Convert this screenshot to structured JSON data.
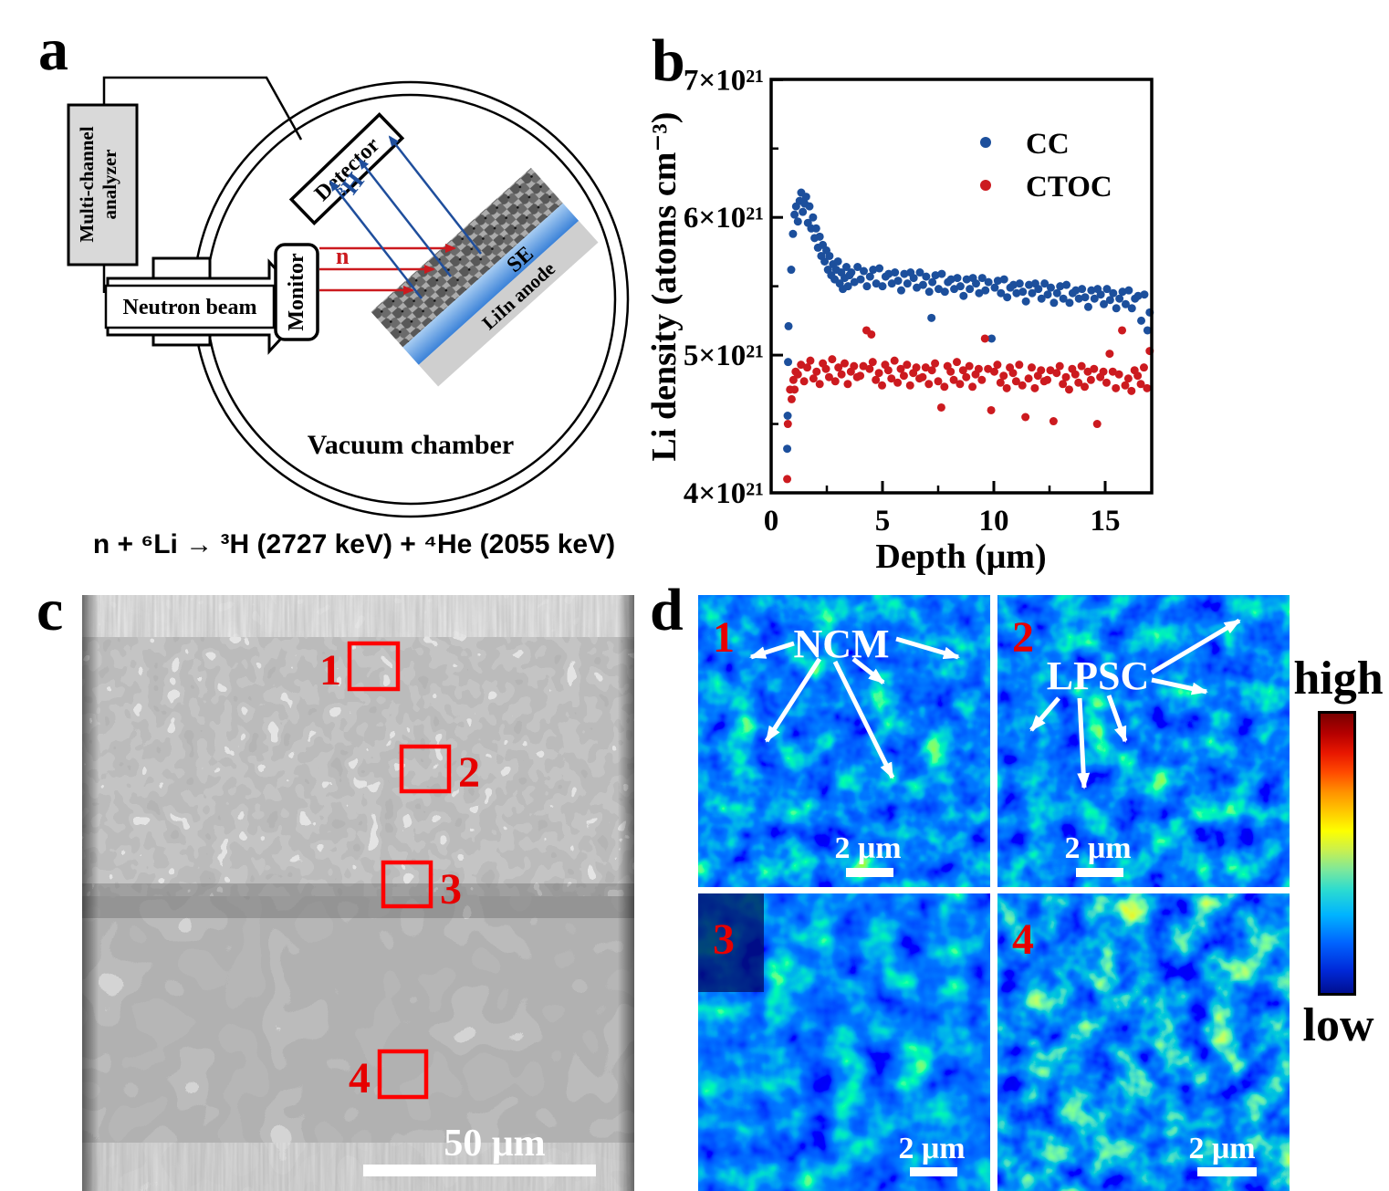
{
  "panels": {
    "a": "a",
    "b": "b",
    "c": "c",
    "d": "d"
  },
  "panel_a": {
    "analyzer_line1": "Multi-channel",
    "analyzer_line2": "analyzer",
    "neutron_beam": "Neutron beam",
    "monitor": "Monitor",
    "detector": "Detector",
    "chamber": "Vacuum chamber",
    "n_label": "n",
    "tritium_label": "³H",
    "se_label": "SE",
    "anode_label": "LiIn anode",
    "equation": "n + ⁶Li → ³H (2727 keV) + ⁴He (2055 keV)"
  },
  "panel_c": {
    "regions": [
      "1",
      "2",
      "3",
      "4"
    ],
    "scale_bar": "50 μm"
  },
  "panel_d": {
    "tiles": [
      "1",
      "2",
      "3",
      "4"
    ],
    "ncm_label": "NCM",
    "lpsc_label": "LPSC",
    "scale_bar": "2 μm",
    "colorbar_high": "high",
    "colorbar_low": "low"
  },
  "chart_data": {
    "type": "scatter",
    "xlabel": "Depth (μm)",
    "ylabel": "Li density (atoms cm⁻³)",
    "xlim": [
      0,
      17.1
    ],
    "ylim": [
      4,
      7
    ],
    "y_unit_scale": "1e21",
    "grid": false,
    "legend_position": "top-right",
    "xticks": {
      "major": [
        0,
        5,
        10,
        15
      ],
      "minor": [
        2.5,
        7.5,
        12.5
      ],
      "labels": [
        "0",
        "5",
        "10",
        "15"
      ]
    },
    "yticks": {
      "major": [
        4,
        5,
        6,
        7
      ],
      "minor": [
        4.5,
        5.5,
        6.5
      ],
      "labels": [
        "4×10²¹",
        "5×10²¹",
        "6×10²¹",
        "7×10²¹"
      ]
    },
    "series": [
      {
        "name": "CC",
        "color": "#1c4f9c",
        "points": [
          [
            0.72,
            4.32
          ],
          [
            0.74,
            4.56
          ],
          [
            0.76,
            4.95
          ],
          [
            0.78,
            5.21
          ],
          [
            0.9,
            5.62
          ],
          [
            0.98,
            5.88
          ],
          [
            1.05,
            6.02
          ],
          [
            1.12,
            6.08
          ],
          [
            1.2,
            5.97
          ],
          [
            1.28,
            6.12
          ],
          [
            1.35,
            6.18
          ],
          [
            1.42,
            6.04
          ],
          [
            1.5,
            6.1
          ],
          [
            1.57,
            6.15
          ],
          [
            1.65,
            5.96
          ],
          [
            1.72,
            6.08
          ],
          [
            1.8,
            5.92
          ],
          [
            1.88,
            6.0
          ],
          [
            1.95,
            5.85
          ],
          [
            2.02,
            5.92
          ],
          [
            2.1,
            5.78
          ],
          [
            2.18,
            5.86
          ],
          [
            2.25,
            5.72
          ],
          [
            2.32,
            5.8
          ],
          [
            2.4,
            5.68
          ],
          [
            2.48,
            5.76
          ],
          [
            2.55,
            5.62
          ],
          [
            2.62,
            5.72
          ],
          [
            2.7,
            5.58
          ],
          [
            2.78,
            5.66
          ],
          [
            2.85,
            5.55
          ],
          [
            2.92,
            5.62
          ],
          [
            3.0,
            5.68
          ],
          [
            3.08,
            5.52
          ],
          [
            3.15,
            5.6
          ],
          [
            3.22,
            5.48
          ],
          [
            3.3,
            5.56
          ],
          [
            3.38,
            5.64
          ],
          [
            3.45,
            5.5
          ],
          [
            3.52,
            5.58
          ],
          [
            3.6,
            5.6
          ],
          [
            3.74,
            5.53
          ],
          [
            3.88,
            5.64
          ],
          [
            4.02,
            5.55
          ],
          [
            4.16,
            5.61
          ],
          [
            4.3,
            5.5
          ],
          [
            4.44,
            5.57
          ],
          [
            4.58,
            5.62
          ],
          [
            4.72,
            5.52
          ],
          [
            4.86,
            5.63
          ],
          [
            5.0,
            5.5
          ],
          [
            5.14,
            5.57
          ],
          [
            5.28,
            5.59
          ],
          [
            5.42,
            5.52
          ],
          [
            5.56,
            5.6
          ],
          [
            5.7,
            5.54
          ],
          [
            5.84,
            5.47
          ],
          [
            5.98,
            5.59
          ],
          [
            6.12,
            5.52
          ],
          [
            6.26,
            5.6
          ],
          [
            6.4,
            5.56
          ],
          [
            6.54,
            5.49
          ],
          [
            6.68,
            5.6
          ],
          [
            6.82,
            5.51
          ],
          [
            6.96,
            5.57
          ],
          [
            7.1,
            5.46
          ],
          [
            7.2,
            5.27
          ],
          [
            7.24,
            5.53
          ],
          [
            7.38,
            5.58
          ],
          [
            7.52,
            5.48
          ],
          [
            7.66,
            5.59
          ],
          [
            7.8,
            5.46
          ],
          [
            7.94,
            5.53
          ],
          [
            8.08,
            5.55
          ],
          [
            8.22,
            5.48
          ],
          [
            8.36,
            5.56
          ],
          [
            8.5,
            5.5
          ],
          [
            8.64,
            5.43
          ],
          [
            8.78,
            5.55
          ],
          [
            8.92,
            5.48
          ],
          [
            9.06,
            5.56
          ],
          [
            9.2,
            5.52
          ],
          [
            9.34,
            5.45
          ],
          [
            9.48,
            5.56
          ],
          [
            9.62,
            5.47
          ],
          [
            9.76,
            5.53
          ],
          [
            9.9,
            5.12
          ],
          [
            10.04,
            5.49
          ],
          [
            10.18,
            5.54
          ],
          [
            10.32,
            5.45
          ],
          [
            10.46,
            5.55
          ],
          [
            10.6,
            5.42
          ],
          [
            10.74,
            5.49
          ],
          [
            10.88,
            5.51
          ],
          [
            11.02,
            5.45
          ],
          [
            11.16,
            5.52
          ],
          [
            11.3,
            5.46
          ],
          [
            11.44,
            5.39
          ],
          [
            11.58,
            5.51
          ],
          [
            11.72,
            5.45
          ],
          [
            11.86,
            5.52
          ],
          [
            12.0,
            5.48
          ],
          [
            12.14,
            5.41
          ],
          [
            12.28,
            5.52
          ],
          [
            12.42,
            5.44
          ],
          [
            12.56,
            5.49
          ],
          [
            12.7,
            5.38
          ],
          [
            12.84,
            5.45
          ],
          [
            12.98,
            5.5
          ],
          [
            13.12,
            5.41
          ],
          [
            13.26,
            5.51
          ],
          [
            13.4,
            5.38
          ],
          [
            13.54,
            5.45
          ],
          [
            13.68,
            5.47
          ],
          [
            13.82,
            5.41
          ],
          [
            13.96,
            5.48
          ],
          [
            14.1,
            5.42
          ],
          [
            14.24,
            5.35
          ],
          [
            14.38,
            5.47
          ],
          [
            14.52,
            5.41
          ],
          [
            14.66,
            5.48
          ],
          [
            14.8,
            5.44
          ],
          [
            14.94,
            5.37
          ],
          [
            15.08,
            5.48
          ],
          [
            15.22,
            5.4
          ],
          [
            15.36,
            5.45
          ],
          [
            15.5,
            5.34
          ],
          [
            15.64,
            5.41
          ],
          [
            15.78,
            5.46
          ],
          [
            15.92,
            5.37
          ],
          [
            16.06,
            5.47
          ],
          [
            16.2,
            5.34
          ],
          [
            16.34,
            5.41
          ],
          [
            16.48,
            5.43
          ],
          [
            16.62,
            5.25
          ],
          [
            16.76,
            5.44
          ],
          [
            16.9,
            5.18
          ],
          [
            17.0,
            5.31
          ]
        ]
      },
      {
        "name": "CTOC",
        "color": "#cc1a1f",
        "points": [
          [
            0.72,
            4.1
          ],
          [
            0.75,
            4.5
          ],
          [
            0.85,
            4.75
          ],
          [
            0.92,
            4.68
          ],
          [
            1.0,
            4.82
          ],
          [
            1.05,
            4.75
          ],
          [
            1.1,
            4.88
          ],
          [
            1.2,
            4.86
          ],
          [
            1.34,
            4.93
          ],
          [
            1.48,
            4.81
          ],
          [
            1.62,
            4.91
          ],
          [
            1.76,
            4.96
          ],
          [
            1.9,
            4.83
          ],
          [
            2.04,
            4.88
          ],
          [
            2.18,
            4.79
          ],
          [
            2.32,
            4.94
          ],
          [
            2.46,
            4.9
          ],
          [
            2.6,
            4.84
          ],
          [
            2.74,
            4.97
          ],
          [
            2.88,
            4.81
          ],
          [
            3.02,
            4.91
          ],
          [
            3.16,
            4.86
          ],
          [
            3.3,
            4.94
          ],
          [
            3.44,
            4.79
          ],
          [
            3.58,
            4.88
          ],
          [
            3.72,
            4.92
          ],
          [
            3.86,
            4.84
          ],
          [
            4.0,
            4.85
          ],
          [
            4.14,
            4.92
          ],
          [
            4.28,
            5.18
          ],
          [
            4.42,
            4.9
          ],
          [
            4.5,
            5.15
          ],
          [
            4.56,
            4.95
          ],
          [
            4.7,
            4.82
          ],
          [
            4.84,
            4.87
          ],
          [
            4.98,
            4.78
          ],
          [
            5.12,
            4.93
          ],
          [
            5.26,
            4.89
          ],
          [
            5.4,
            4.83
          ],
          [
            5.54,
            4.96
          ],
          [
            5.68,
            4.8
          ],
          [
            5.82,
            4.9
          ],
          [
            5.96,
            4.85
          ],
          [
            6.1,
            4.93
          ],
          [
            6.24,
            4.78
          ],
          [
            6.38,
            4.87
          ],
          [
            6.52,
            4.91
          ],
          [
            6.66,
            4.83
          ],
          [
            6.8,
            4.84
          ],
          [
            6.94,
            4.91
          ],
          [
            7.08,
            4.79
          ],
          [
            7.22,
            4.89
          ],
          [
            7.36,
            4.94
          ],
          [
            7.5,
            4.81
          ],
          [
            7.64,
            4.62
          ],
          [
            7.78,
            4.77
          ],
          [
            7.92,
            4.92
          ],
          [
            8.06,
            4.88
          ],
          [
            8.2,
            4.82
          ],
          [
            8.34,
            4.95
          ],
          [
            8.48,
            4.79
          ],
          [
            8.62,
            4.89
          ],
          [
            8.76,
            4.84
          ],
          [
            8.9,
            4.92
          ],
          [
            9.04,
            4.77
          ],
          [
            9.18,
            4.86
          ],
          [
            9.32,
            4.9
          ],
          [
            9.46,
            4.82
          ],
          [
            9.6,
            5.12
          ],
          [
            9.74,
            4.9
          ],
          [
            9.88,
            4.6
          ],
          [
            10.02,
            4.88
          ],
          [
            10.16,
            4.93
          ],
          [
            10.3,
            4.8
          ],
          [
            10.44,
            4.85
          ],
          [
            10.58,
            4.76
          ],
          [
            10.72,
            4.91
          ],
          [
            10.86,
            4.87
          ],
          [
            11.0,
            4.81
          ],
          [
            11.14,
            4.93
          ],
          [
            11.28,
            4.78
          ],
          [
            11.42,
            4.55
          ],
          [
            11.56,
            4.83
          ],
          [
            11.7,
            4.91
          ],
          [
            11.84,
            4.76
          ],
          [
            11.98,
            4.85
          ],
          [
            12.12,
            4.89
          ],
          [
            12.26,
            4.81
          ],
          [
            12.4,
            4.82
          ],
          [
            12.54,
            4.89
          ],
          [
            12.68,
            4.52
          ],
          [
            12.82,
            4.87
          ],
          [
            12.96,
            4.92
          ],
          [
            13.1,
            4.79
          ],
          [
            13.24,
            4.84
          ],
          [
            13.38,
            4.75
          ],
          [
            13.52,
            4.9
          ],
          [
            13.66,
            4.86
          ],
          [
            13.8,
            4.8
          ],
          [
            13.94,
            4.92
          ],
          [
            14.08,
            4.77
          ],
          [
            14.22,
            4.88
          ],
          [
            14.36,
            4.82
          ],
          [
            14.5,
            4.9
          ],
          [
            14.64,
            4.5
          ],
          [
            14.78,
            4.84
          ],
          [
            14.92,
            4.88
          ],
          [
            15.06,
            4.8
          ],
          [
            15.2,
            5.01
          ],
          [
            15.34,
            4.88
          ],
          [
            15.48,
            4.76
          ],
          [
            15.62,
            4.86
          ],
          [
            15.76,
            5.18
          ],
          [
            15.9,
            4.78
          ],
          [
            16.04,
            4.83
          ],
          [
            16.18,
            4.74
          ],
          [
            16.32,
            4.89
          ],
          [
            16.46,
            4.85
          ],
          [
            16.6,
            4.79
          ],
          [
            16.74,
            4.91
          ],
          [
            16.88,
            4.76
          ],
          [
            17.0,
            5.03
          ]
        ]
      }
    ]
  }
}
